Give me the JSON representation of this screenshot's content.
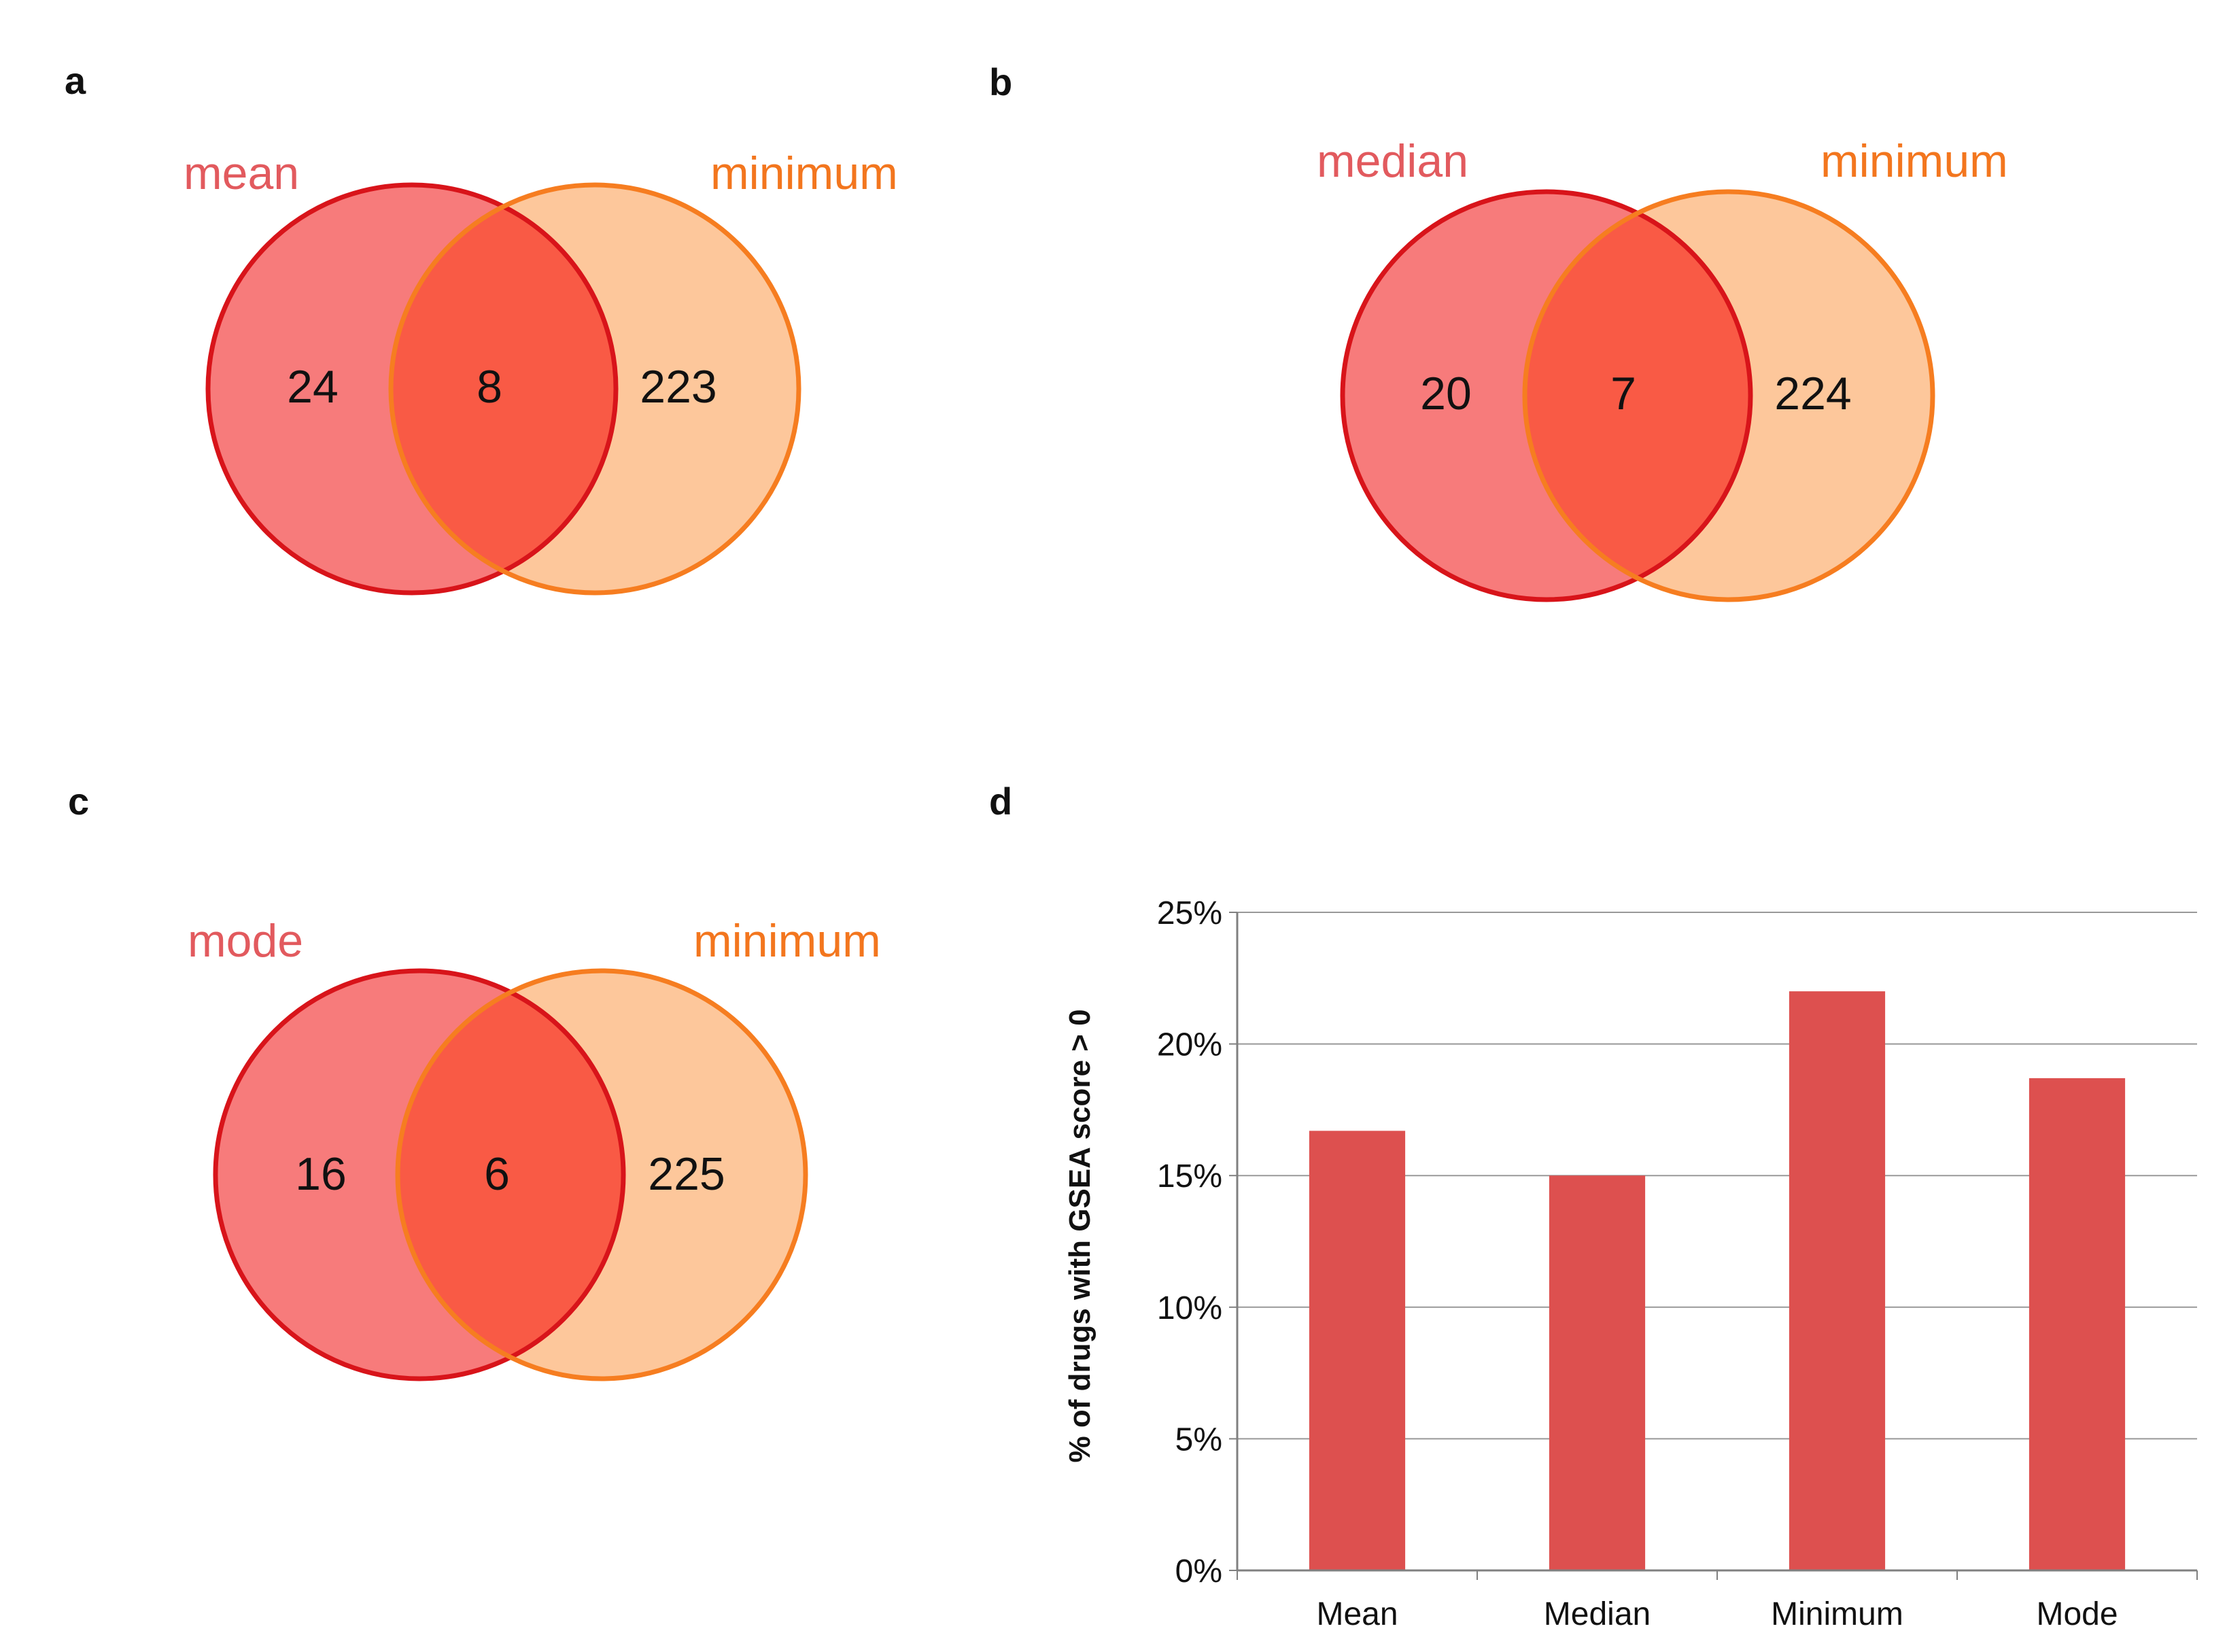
{
  "figure": {
    "panels": [
      {
        "letter": "a",
        "left_label": "mean",
        "right_label": "minimum",
        "left_only": "24",
        "overlap": "8",
        "right_only": "223"
      },
      {
        "letter": "b",
        "left_label": "median",
        "right_label": "minimum",
        "left_only": "20",
        "overlap": "7",
        "right_only": "224"
      },
      {
        "letter": "c",
        "left_label": "mode",
        "right_label": "minimum",
        "left_only": "16",
        "overlap": "6",
        "right_only": "225"
      }
    ],
    "bar_panel_letter": "d"
  },
  "colors": {
    "left_fill": "#f77b7b",
    "left_stroke": "#d8141a",
    "right_fill": "#fdc79b",
    "right_stroke": "#f67d20",
    "overlap_fill": "#f95a45",
    "left_label": "#e25a5e",
    "right_label": "#f3761e",
    "bar": "#dd504f",
    "grid": "#999999"
  },
  "chart_data": [
    {
      "type": "venn",
      "panel": "a",
      "sets": [
        "mean",
        "minimum"
      ],
      "left_only": 24,
      "intersection": 8,
      "right_only": 223
    },
    {
      "type": "venn",
      "panel": "b",
      "sets": [
        "median",
        "minimum"
      ],
      "left_only": 20,
      "intersection": 7,
      "right_only": 224
    },
    {
      "type": "venn",
      "panel": "c",
      "sets": [
        "mode",
        "minimum"
      ],
      "left_only": 16,
      "intersection": 6,
      "right_only": 225
    },
    {
      "type": "bar",
      "panel": "d",
      "title": "",
      "categories": [
        "Mean",
        "Median",
        "Minimum",
        "Mode"
      ],
      "values": [
        16.7,
        15.0,
        22.0,
        18.7
      ],
      "xlabel": "",
      "ylabel": "% of drugs with GSEA score > 0",
      "ylim": [
        0,
        25
      ],
      "yticks": [
        0,
        5,
        10,
        15,
        20,
        25
      ],
      "ytick_labels": [
        "0%",
        "5%",
        "10%",
        "15%",
        "20%",
        "25%"
      ],
      "grid": true
    }
  ]
}
